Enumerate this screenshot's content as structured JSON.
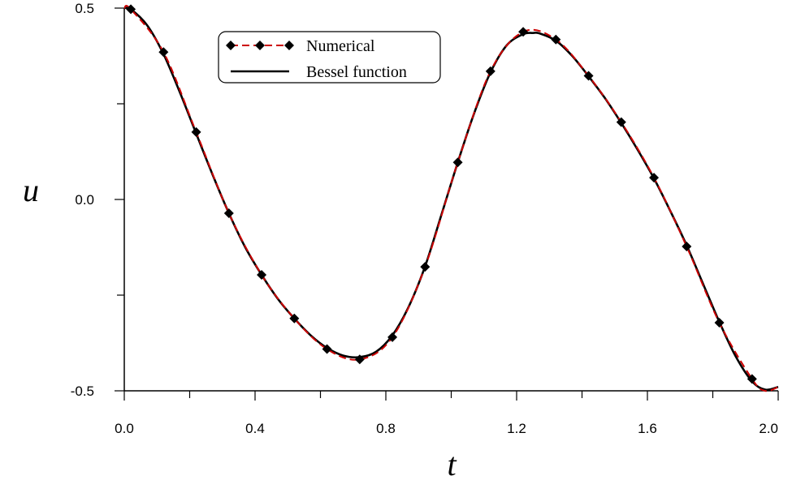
{
  "chart_data": {
    "type": "line",
    "title": "",
    "xlabel": "t",
    "ylabel": "u",
    "xlim": [
      0.0,
      2.0
    ],
    "ylim": [
      -0.5,
      0.5
    ],
    "x_ticks": [
      "0.0",
      "0.4",
      "0.8",
      "1.2",
      "1.6",
      "2.0"
    ],
    "y_ticks": [
      "-0.5",
      "0.0",
      "0.5"
    ],
    "grid": false,
    "legend_position": "top-center",
    "series": [
      {
        "name": "Numerical",
        "style": "dashed-with-diamond-markers",
        "color": "#cc0000",
        "marker_color": "#000000",
        "x": [
          0.02,
          0.12,
          0.22,
          0.32,
          0.42,
          0.52,
          0.62,
          0.72,
          0.82,
          0.92,
          1.02,
          1.12,
          1.22,
          1.32,
          1.42,
          1.52,
          1.62,
          1.72,
          1.82,
          1.92
        ],
        "y": [
          0.497,
          0.385,
          0.176,
          -0.036,
          -0.197,
          -0.311,
          -0.391,
          -0.418,
          -0.36,
          -0.176,
          0.097,
          0.335,
          0.438,
          0.418,
          0.323,
          0.202,
          0.057,
          -0.123,
          -0.322,
          -0.469
        ]
      },
      {
        "name": "Bessel function",
        "style": "solid",
        "color": "#000000",
        "x": [
          0.0,
          0.02,
          0.07,
          0.12,
          0.17,
          0.22,
          0.27,
          0.32,
          0.37,
          0.42,
          0.47,
          0.52,
          0.57,
          0.62,
          0.67,
          0.72,
          0.77,
          0.82,
          0.87,
          0.92,
          0.97,
          1.02,
          1.07,
          1.12,
          1.17,
          1.22,
          1.25,
          1.27,
          1.32,
          1.37,
          1.42,
          1.47,
          1.52,
          1.57,
          1.62,
          1.67,
          1.72,
          1.77,
          1.82,
          1.87,
          1.92,
          1.96,
          2.0
        ],
        "y": [
          0.5,
          0.497,
          0.455,
          0.38,
          0.28,
          0.172,
          0.065,
          -0.036,
          -0.125,
          -0.197,
          -0.26,
          -0.311,
          -0.355,
          -0.388,
          -0.408,
          -0.412,
          -0.398,
          -0.355,
          -0.28,
          -0.175,
          -0.04,
          0.097,
          0.225,
          0.332,
          0.403,
          0.432,
          0.435,
          0.434,
          0.415,
          0.375,
          0.322,
          0.265,
          0.2,
          0.13,
          0.055,
          -0.03,
          -0.12,
          -0.22,
          -0.32,
          -0.41,
          -0.475,
          -0.497,
          -0.49
        ]
      }
    ]
  }
}
